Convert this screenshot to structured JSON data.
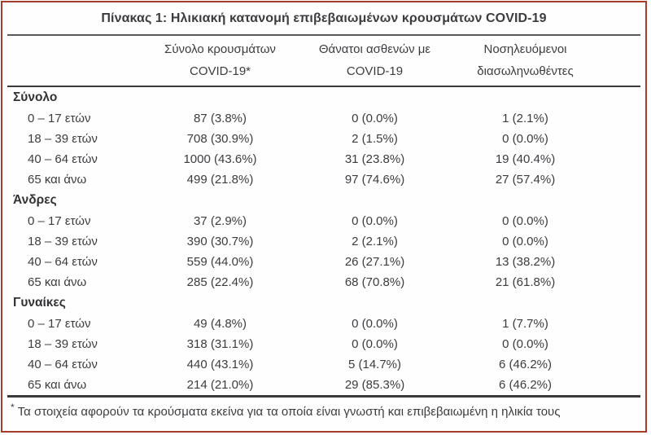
{
  "title": "Πίνακας 1: Ηλικιακή κατανομή επιβεβαιωμένων κρουσμάτων COVID-19",
  "colors": {
    "frame_border": "#a93a2e",
    "text": "#3c3c40",
    "rule": "#3a3a3a"
  },
  "table": {
    "columns": [
      {
        "line1": "Σύνολο κρουσμάτων",
        "line2": "COVID-19*"
      },
      {
        "line1": "Θάνατοι ασθενών με",
        "line2": "COVID-19"
      },
      {
        "line1": "Νοσηλευόμενοι",
        "line2": "διασωληνωθέντες"
      }
    ],
    "sections": [
      {
        "label": "Σύνολο",
        "rows": [
          {
            "label": "0 – 17 ετών",
            "cases": "87 (3.8%)",
            "deaths": "0 (0.0%)",
            "intubated": "1 (2.1%)"
          },
          {
            "label": "18 – 39 ετών",
            "cases": "708 (30.9%)",
            "deaths": "2 (1.5%)",
            "intubated": "0 (0.0%)"
          },
          {
            "label": "40 – 64 ετών",
            "cases": "1000 (43.6%)",
            "deaths": "31 (23.8%)",
            "intubated": "19 (40.4%)"
          },
          {
            "label": "65 και άνω",
            "cases": "499 (21.8%)",
            "deaths": "97 (74.6%)",
            "intubated": "27 (57.4%)"
          }
        ]
      },
      {
        "label": "Άνδρες",
        "rows": [
          {
            "label": "0 – 17 ετών",
            "cases": "37 (2.9%)",
            "deaths": "0 (0.0%)",
            "intubated": "0 (0.0%)"
          },
          {
            "label": "18 – 39 ετών",
            "cases": "390 (30.7%)",
            "deaths": "2 (2.1%)",
            "intubated": "0 (0.0%)"
          },
          {
            "label": "40 – 64 ετών",
            "cases": "559 (44.0%)",
            "deaths": "26 (27.1%)",
            "intubated": "13 (38.2%)"
          },
          {
            "label": "65 και άνω",
            "cases": "285 (22.4%)",
            "deaths": "68 (70.8%)",
            "intubated": "21 (61.8%)"
          }
        ]
      },
      {
        "label": "Γυναίκες",
        "rows": [
          {
            "label": "0 – 17 ετών",
            "cases": "49 (4.8%)",
            "deaths": "0 (0.0%)",
            "intubated": "1 (7.7%)"
          },
          {
            "label": "18 – 39 ετών",
            "cases": "318 (31.1%)",
            "deaths": "0 (0.0%)",
            "intubated": "0 (0.0%)"
          },
          {
            "label": "40 – 64 ετών",
            "cases": "440 (43.1%)",
            "deaths": "5 (14.7%)",
            "intubated": "6 (46.2%)"
          },
          {
            "label": "65 και άνω",
            "cases": "214 (21.0%)",
            "deaths": "29 (85.3%)",
            "intubated": "6 (46.2%)"
          }
        ]
      }
    ]
  },
  "footnote": {
    "marker": "*",
    "text": "Τα στοιχεία αφορούν τα κρούσματα εκείνα για τα οποία είναι γνωστή και επιβεβαιωμένη η ηλικία τους"
  }
}
